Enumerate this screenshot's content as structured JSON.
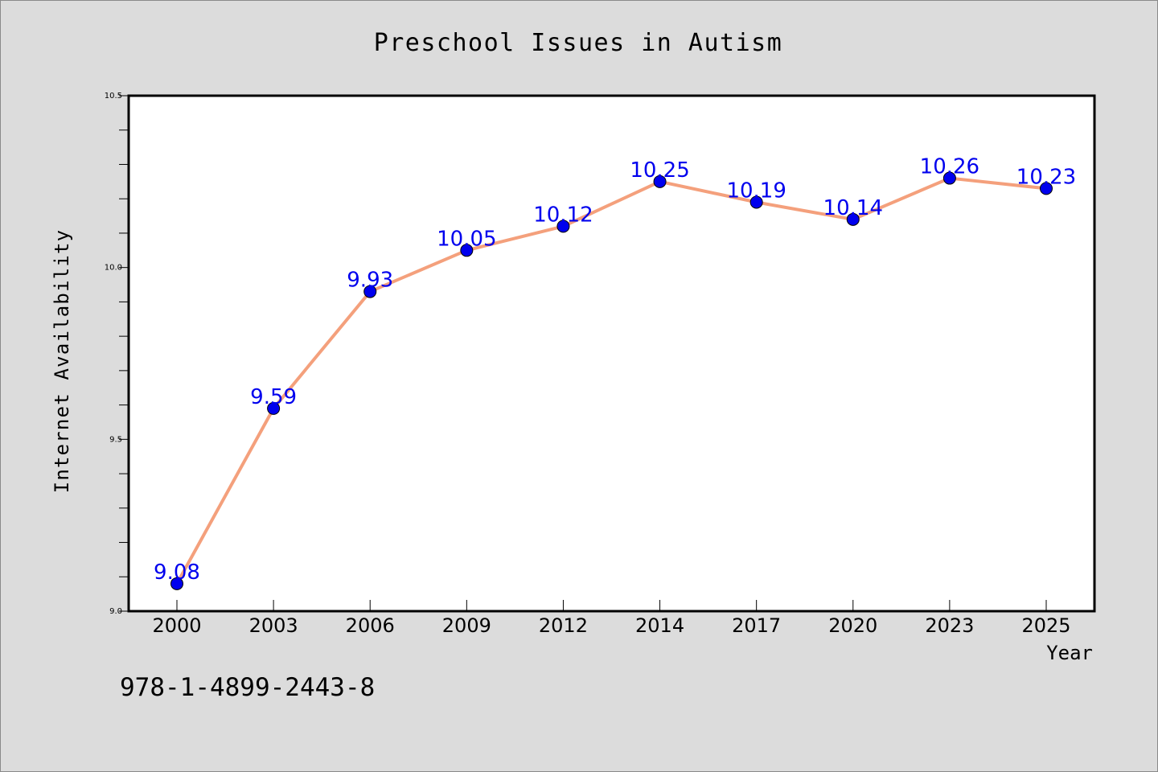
{
  "chart_data": {
    "type": "line",
    "title": "Preschool Issues in Autism",
    "xlabel": "Year",
    "ylabel": "Internet Availability",
    "categories": [
      "2000",
      "2003",
      "2006",
      "2009",
      "2012",
      "2014",
      "2017",
      "2020",
      "2023",
      "2025"
    ],
    "series": [
      {
        "values": [
          9.08,
          9.59,
          9.93,
          10.05,
          10.12,
          10.25,
          10.19,
          10.14,
          10.26,
          10.23
        ],
        "data_labels": [
          "9.08",
          "9.59",
          "9.93",
          "10.05",
          "10.12",
          "10.25",
          "10.19",
          "10.14",
          "10.26",
          "10.23"
        ],
        "line_color": "#f4a07c",
        "marker_color": "#0000ee",
        "label_color": "#0000ee"
      }
    ],
    "ylim": [
      9.0,
      10.5
    ],
    "ytick_labels": [
      "9.0",
      "9.5",
      "10.0",
      "10.5"
    ],
    "grid": false,
    "legend": "none"
  },
  "footer_text": "978-1-4899-2443-8",
  "colors": {
    "background": "#dcdcdc",
    "plot_background": "#ffffff",
    "axis": "#000000",
    "text": "#000000"
  }
}
